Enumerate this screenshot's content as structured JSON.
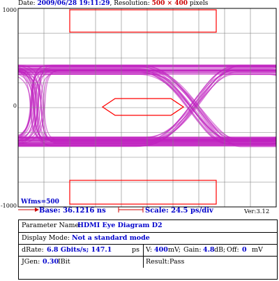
{
  "header": {
    "date_label": "Date:",
    "date_value": "2009/06/28 19:11:29",
    "resolution_label": ", Resolution:",
    "resolution_value": "500 × 400",
    "resolution_unit": "pixels"
  },
  "scope": {
    "y_top_label": "1000",
    "y_mid_label": "0",
    "y_bottom_label": "-1000",
    "wfms_label": "Wfms=500",
    "base_label": "Base: 36.1216 ns",
    "scale_label": "Scale: 24.5 ps/div",
    "version_label": "Ver:3.12",
    "colors": {
      "trace": "#c020c0",
      "grid": "#808080",
      "mask": "#ff0000",
      "text_blue": "#0000cc"
    }
  },
  "info": {
    "param_label": "Parameter Name:",
    "param_value": "HDMI Eye Diagram D2",
    "mode_label": "Display Mode:",
    "mode_value": "Not a standard mode",
    "drate_label": "dRate:",
    "drate_value": "6.8 Gbits/s; 147.1",
    "drate_unit": "ps",
    "v_label": "V:",
    "v_value": "400",
    "v_unit": "mV;",
    "gain_label": "Gain:",
    "gain_value": "4.8",
    "gain_unit": "dB;",
    "off_label": "Off:",
    "off_value": "0",
    "off_unit": "mV",
    "jgen_label": "JGen:",
    "jgen_value": "0.30",
    "jgen_unit": "IBit",
    "result_label": "Result:",
    "result_value": "Pass"
  }
}
